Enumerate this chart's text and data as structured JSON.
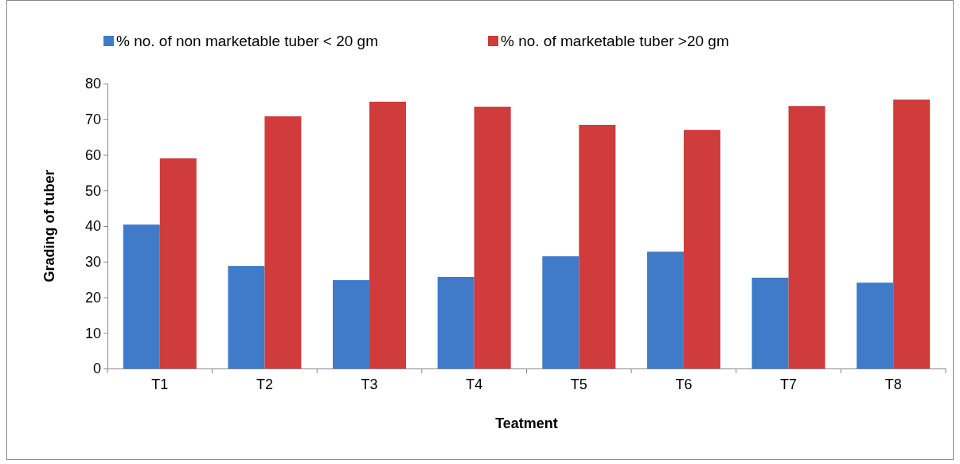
{
  "chart_data": {
    "type": "bar",
    "xlabel": "Teatment",
    "ylabel": "Grading of tuber",
    "categories": [
      "T1",
      "T2",
      "T3",
      "T4",
      "T5",
      "T6",
      "T7",
      "T8"
    ],
    "series": [
      {
        "name": "% no. of non marketable tuber < 20 gm",
        "color": "#3f7bc8",
        "values": [
          40.4,
          28.8,
          24.8,
          25.7,
          31.5,
          32.8,
          25.5,
          24.1
        ]
      },
      {
        "name": "% no. of marketable tuber >20 gm",
        "color": "#d03b3b",
        "values": [
          59.0,
          70.8,
          74.9,
          73.5,
          68.4,
          67.0,
          73.7,
          75.5
        ]
      }
    ],
    "ylim": [
      0,
      80
    ],
    "yticks": [
      0,
      10,
      20,
      30,
      40,
      50,
      60,
      70,
      80
    ],
    "grid": false,
    "legend": "top"
  }
}
